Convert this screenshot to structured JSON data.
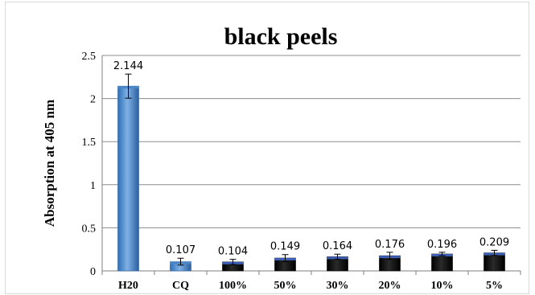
{
  "chart_data": {
    "type": "bar",
    "title": "black peels",
    "xlabel": "",
    "ylabel": "Absorption at 405 nm",
    "ylim": [
      0,
      2.5
    ],
    "yticks": [
      "0",
      "0.5",
      "1",
      "1.5",
      "2",
      "2.5"
    ],
    "ytick_values": [
      0,
      0.5,
      1,
      1.5,
      2,
      2.5
    ],
    "categories": [
      "H20",
      "CQ",
      "100%",
      "50%",
      "30%",
      "20%",
      "10%",
      "5%"
    ],
    "values": [
      2.144,
      0.107,
      0.104,
      0.149,
      0.164,
      0.176,
      0.196,
      0.209
    ],
    "data_labels": [
      "2.144",
      "0.107",
      "0.104",
      "0.149",
      "0.164",
      "0.176",
      "0.196",
      "0.209"
    ],
    "error": [
      0.14,
      0.04,
      0.03,
      0.04,
      0.03,
      0.04,
      0.02,
      0.03
    ],
    "bar_colors": [
      "#4a86c8",
      "#4a86c8",
      "#0f0f0f",
      "#0f0f0f",
      "#0f0f0f",
      "#0f0f0f",
      "#0f0f0f",
      "#0f0f0f"
    ],
    "bar_top_colors": [
      "#4a86c8",
      "#4a86c8",
      "#3d5fb5",
      "#3d5fb5",
      "#3d5fb5",
      "#3d5fb5",
      "#3d5fb5",
      "#3d5fb5"
    ],
    "grid": true,
    "legend": "none"
  }
}
